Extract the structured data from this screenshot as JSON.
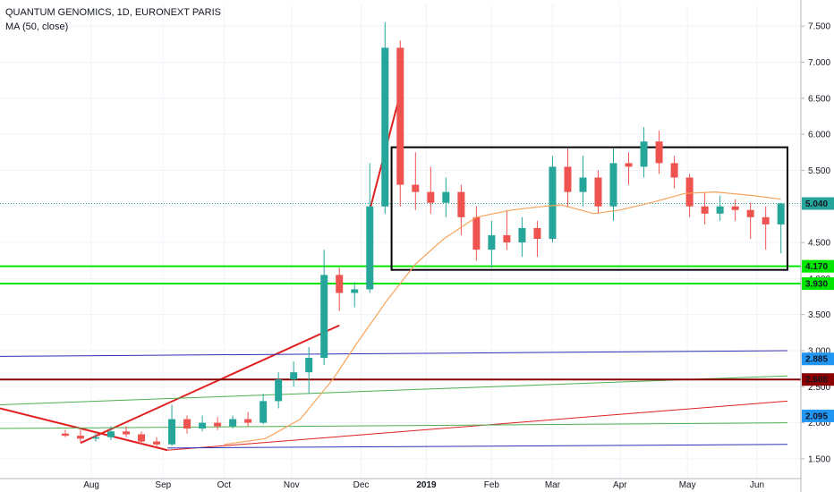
{
  "header": {
    "symbol_line": "QUANTUM GENOMICS, 1D, EURONEXT PARIS",
    "indicator": "MA (50, close)"
  },
  "colors": {
    "up": "#26a69a",
    "down": "#ef5350",
    "ma": "#f7a35c",
    "green_level": "#00e600",
    "blue_line": "#2f2fb5",
    "dark_red": "#8b0000",
    "red_line": "#e02020"
  },
  "chart_data": {
    "type": "candlestick",
    "y_range": [
      1.35,
      7.8
    ],
    "y_ticks": [
      "1.500",
      "2.000",
      "2.500",
      "3.000",
      "3.500",
      "4.000",
      "4.500",
      "5.000",
      "5.500",
      "6.000",
      "6.500",
      "7.000",
      "7.500"
    ],
    "x_labels": [
      "Aug",
      "Sep",
      "Oct",
      "Nov",
      "Dec",
      "2019",
      "Feb",
      "Mar",
      "Apr",
      "May",
      "Jun"
    ],
    "price_badges": [
      {
        "label": "5.040",
        "value": 5.04,
        "bg": "#26a69a",
        "fg": "#ffffff"
      },
      {
        "label": "4.170",
        "value": 4.17,
        "bg": "#00e600",
        "fg": "#000000"
      },
      {
        "label": "3.930",
        "value": 3.93,
        "bg": "#00e600",
        "fg": "#000000"
      },
      {
        "label": "2.885",
        "value": 2.885,
        "bg": "#2196f3",
        "fg": "#ffffff"
      },
      {
        "label": "2.600",
        "value": 2.6,
        "bg": "#8b0000",
        "fg": "#ffffff"
      },
      {
        "label": "2.095",
        "value": 2.095,
        "bg": "#2196f3",
        "fg": "#ffffff"
      }
    ],
    "horizontal_levels": [
      4.17,
      3.93,
      2.6
    ],
    "range_box": {
      "price_top": 5.82,
      "price_bottom": 4.12,
      "start": "2018-12-17",
      "end": "2019-06-17"
    },
    "trend_lines": [
      {
        "from": [
          "2018-07-27",
          1.72
        ],
        "to": [
          "2018-11-23",
          3.35
        ],
        "color": "red"
      },
      {
        "from": [
          "2018-12-07",
          4.95
        ],
        "to": [
          "2018-12-20",
          6.45
        ],
        "color": "red"
      },
      {
        "from": [
          "2018-06-20",
          2.2
        ],
        "to": [
          "2018-09-05",
          1.62
        ],
        "color": "red"
      },
      {
        "from": [
          "2018-09-05",
          1.62
        ],
        "to": [
          "2019-06-17",
          2.3
        ],
        "color": "red_thin"
      },
      {
        "from": [
          "2018-06-20",
          2.92
        ],
        "to": [
          "2019-06-17",
          3.0
        ],
        "color": "blue"
      },
      {
        "from": [
          "2018-09-05",
          1.65
        ],
        "to": [
          "2019-06-17",
          1.7
        ],
        "color": "blue"
      },
      {
        "from": [
          "2018-06-20",
          2.25
        ],
        "to": [
          "2019-06-17",
          2.65
        ],
        "color": "green"
      },
      {
        "from": [
          "2018-06-20",
          1.92
        ],
        "to": [
          "2019-06-17",
          2.0
        ],
        "color": "green"
      }
    ],
    "ohlc": [
      [
        "2018-07-20",
        1.85,
        1.9,
        1.8,
        1.82
      ],
      [
        "2018-07-27",
        1.82,
        1.9,
        1.72,
        1.78
      ],
      [
        "2018-08-03",
        1.78,
        1.85,
        1.74,
        1.8
      ],
      [
        "2018-08-10",
        1.8,
        1.95,
        1.76,
        1.88
      ],
      [
        "2018-08-17",
        1.88,
        1.95,
        1.8,
        1.84
      ],
      [
        "2018-08-24",
        1.84,
        1.88,
        1.7,
        1.74
      ],
      [
        "2018-08-31",
        1.74,
        1.8,
        1.66,
        1.7
      ],
      [
        "2018-09-07",
        1.7,
        2.25,
        1.68,
        2.05
      ],
      [
        "2018-09-14",
        2.05,
        2.1,
        1.85,
        1.92
      ],
      [
        "2018-09-21",
        1.92,
        2.1,
        1.88,
        2.0
      ],
      [
        "2018-09-28",
        2.0,
        2.08,
        1.9,
        1.95
      ],
      [
        "2018-10-05",
        1.95,
        2.1,
        1.92,
        2.05
      ],
      [
        "2018-10-12",
        2.05,
        2.15,
        1.95,
        2.0
      ],
      [
        "2018-10-19",
        2.0,
        2.4,
        1.98,
        2.3
      ],
      [
        "2018-10-26",
        2.3,
        2.7,
        2.2,
        2.6
      ],
      [
        "2018-11-02",
        2.6,
        2.85,
        2.5,
        2.7
      ],
      [
        "2018-11-09",
        2.7,
        3.05,
        2.4,
        2.9
      ],
      [
        "2018-11-16",
        2.9,
        4.4,
        2.8,
        4.05
      ],
      [
        "2018-11-23",
        4.05,
        4.15,
        3.55,
        3.8
      ],
      [
        "2018-11-30",
        3.8,
        3.95,
        3.6,
        3.85
      ],
      [
        "2018-12-07",
        3.85,
        5.6,
        3.8,
        5.0
      ],
      [
        "2018-12-14",
        5.0,
        7.55,
        4.9,
        7.2
      ],
      [
        "2018-12-21",
        7.2,
        7.3,
        5.0,
        5.3
      ],
      [
        "2018-12-28",
        5.3,
        5.75,
        4.95,
        5.2
      ],
      [
        "2019-01-04",
        5.2,
        5.55,
        4.9,
        5.05
      ],
      [
        "2019-01-11",
        5.05,
        5.4,
        4.85,
        5.2
      ],
      [
        "2019-01-18",
        5.2,
        5.3,
        4.6,
        4.85
      ],
      [
        "2019-01-25",
        4.85,
        5.0,
        4.25,
        4.4
      ],
      [
        "2019-02-01",
        4.4,
        4.8,
        4.15,
        4.6
      ],
      [
        "2019-02-08",
        4.6,
        4.95,
        4.4,
        4.5
      ],
      [
        "2019-02-15",
        4.5,
        4.85,
        4.3,
        4.7
      ],
      [
        "2019-02-22",
        4.7,
        4.8,
        4.3,
        4.55
      ],
      [
        "2019-03-01",
        4.55,
        5.7,
        4.5,
        5.55
      ],
      [
        "2019-03-08",
        5.55,
        5.8,
        5.0,
        5.2
      ],
      [
        "2019-03-15",
        5.2,
        5.7,
        5.0,
        5.4
      ],
      [
        "2019-03-22",
        5.4,
        5.5,
        4.9,
        5.0
      ],
      [
        "2019-03-29",
        5.0,
        5.8,
        4.8,
        5.6
      ],
      [
        "2019-04-05",
        5.6,
        5.75,
        5.3,
        5.55
      ],
      [
        "2019-04-12",
        5.55,
        6.1,
        5.4,
        5.9
      ],
      [
        "2019-04-19",
        5.9,
        6.05,
        5.45,
        5.6
      ],
      [
        "2019-04-26",
        5.6,
        5.7,
        5.25,
        5.4
      ],
      [
        "2019-05-03",
        5.4,
        5.45,
        4.85,
        5.0
      ],
      [
        "2019-05-10",
        5.0,
        5.2,
        4.75,
        4.9
      ],
      [
        "2019-05-17",
        4.9,
        5.15,
        4.8,
        5.0
      ],
      [
        "2019-05-24",
        5.0,
        5.1,
        4.8,
        4.95
      ],
      [
        "2019-05-31",
        4.95,
        5.05,
        4.55,
        4.85
      ],
      [
        "2019-06-07",
        4.85,
        5.0,
        4.4,
        4.75
      ],
      [
        "2019-06-14",
        4.75,
        5.05,
        4.35,
        5.04
      ]
    ],
    "ma50": [
      [
        "2018-10-01",
        1.7
      ],
      [
        "2018-10-20",
        1.78
      ],
      [
        "2018-11-05",
        2.05
      ],
      [
        "2018-11-20",
        2.6
      ],
      [
        "2018-12-01",
        3.1
      ],
      [
        "2018-12-15",
        3.7
      ],
      [
        "2018-12-28",
        4.2
      ],
      [
        "2019-01-10",
        4.55
      ],
      [
        "2019-01-25",
        4.85
      ],
      [
        "2019-02-10",
        4.95
      ],
      [
        "2019-02-25",
        5.0
      ],
      [
        "2019-03-05",
        5.02
      ],
      [
        "2019-03-20",
        4.9
      ],
      [
        "2019-04-01",
        4.95
      ],
      [
        "2019-04-15",
        5.05
      ],
      [
        "2019-05-01",
        5.18
      ],
      [
        "2019-05-15",
        5.2
      ],
      [
        "2019-06-01",
        5.15
      ],
      [
        "2019-06-14",
        5.1
      ]
    ]
  }
}
